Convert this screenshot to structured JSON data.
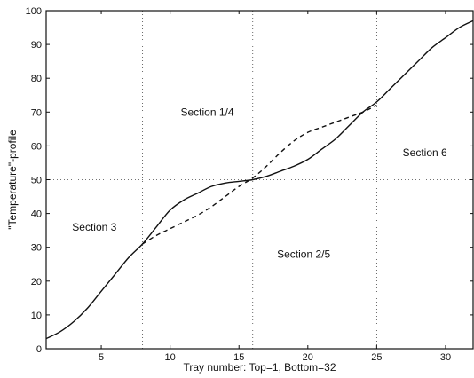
{
  "chart_data": {
    "type": "line",
    "title": "",
    "xlabel": "Tray number: Top=1, Bottom=32",
    "ylabel": "\"Temperature\"-profile",
    "xlim": [
      1,
      32
    ],
    "ylim": [
      0,
      100
    ],
    "xticks": [
      5,
      10,
      15,
      20,
      25,
      30
    ],
    "yticks": [
      0,
      10,
      20,
      30,
      40,
      50,
      60,
      70,
      80,
      90,
      100
    ],
    "grid": {
      "x": [
        8,
        16,
        25
      ],
      "y": [
        50
      ]
    },
    "series": [
      {
        "style": "solid",
        "x": [
          1,
          2,
          3,
          4,
          5,
          6,
          7,
          8,
          9,
          10,
          11,
          12,
          13,
          14,
          15,
          16,
          17,
          18,
          19,
          20,
          21,
          22,
          23,
          24,
          25,
          26,
          27,
          28,
          29,
          30,
          31,
          32
        ],
        "y": [
          3,
          5,
          8,
          12,
          17,
          22,
          27,
          31,
          36,
          41,
          44,
          46,
          48,
          49,
          49.5,
          50,
          51,
          52.5,
          54,
          56,
          59,
          62,
          66,
          70,
          73,
          77,
          81,
          85,
          89,
          92,
          95,
          97
        ]
      },
      {
        "style": "dashed",
        "x": [
          8,
          9,
          10,
          11,
          12,
          13,
          14,
          15,
          16,
          17,
          18,
          19,
          20,
          21,
          22,
          23,
          24,
          25
        ],
        "y": [
          31,
          33.5,
          35.5,
          37.5,
          39.5,
          42,
          45,
          48,
          50.5,
          54,
          58,
          61.5,
          64,
          65.5,
          67,
          68.5,
          70,
          72
        ]
      }
    ],
    "annotations": [
      {
        "text": "Section 1/4",
        "x": 12.7,
        "y": 70
      },
      {
        "text": "Section 3",
        "x": 4.5,
        "y": 36
      },
      {
        "text": "Section 2/5",
        "x": 19.7,
        "y": 28
      },
      {
        "text": "Section 6",
        "x": 28.5,
        "y": 58
      }
    ]
  }
}
